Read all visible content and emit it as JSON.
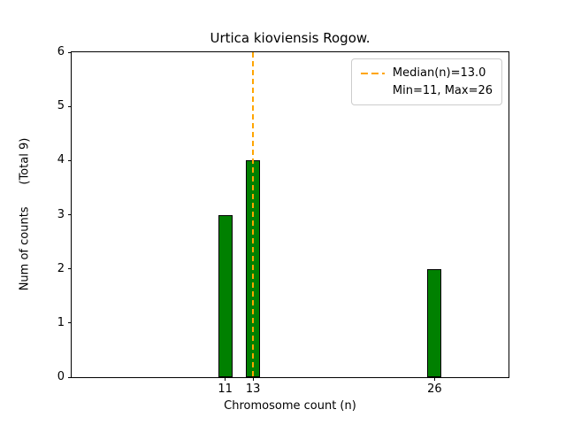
{
  "chart_data": {
    "type": "bar",
    "title": "Urtica kioviensis Rogow.",
    "xlabel": "Chromosome count (n)",
    "ylabel": "Num of counts      (Total 9)",
    "total_counts": 9,
    "x": [
      11,
      13,
      26
    ],
    "values": [
      3,
      4,
      2
    ],
    "bar_width": 1.0,
    "bar_color": "#008000",
    "bar_edge_color": "#000000",
    "xlim": [
      0,
      31.3
    ],
    "ylim": [
      0,
      6
    ],
    "xticks": [
      11,
      13,
      26
    ],
    "yticks": [
      0,
      1,
      2,
      3,
      4,
      5,
      6
    ],
    "grid": false,
    "median_line": {
      "x": 13.0,
      "color": "#ffa500",
      "style": "dashed"
    },
    "stats": {
      "median": 13.0,
      "min": 11,
      "max": 26
    },
    "legend": {
      "position": "top-right",
      "entries": [
        {
          "label": "Median(n)=13.0",
          "symbol": "dashed-line",
          "color": "#ffa500"
        },
        {
          "label": "Min=11, Max=26",
          "symbol": "none",
          "color": ""
        }
      ]
    }
  }
}
